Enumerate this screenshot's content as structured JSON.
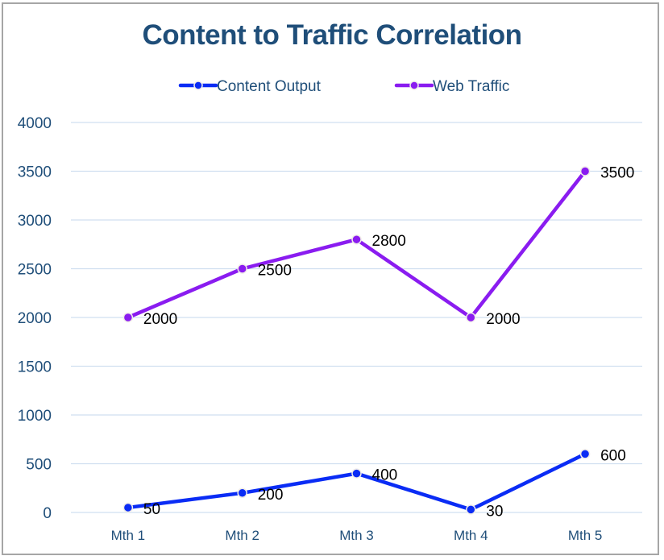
{
  "chart_data": {
    "type": "line",
    "title": "Content to Traffic Correlation",
    "xlabel": "",
    "ylabel": "",
    "categories": [
      "Mth 1",
      "Mth 2",
      "Mth 3",
      "Mth 4",
      "Mth 5"
    ],
    "ylim": [
      0,
      4000
    ],
    "yticks": [
      0,
      500,
      1000,
      1500,
      2000,
      2500,
      3000,
      3500,
      4000
    ],
    "grid": true,
    "legend_position": "top",
    "series": [
      {
        "name": "Content Output",
        "values": [
          50,
          200,
          400,
          30,
          600
        ],
        "color": "#0a2cf5",
        "data_labels": true
      },
      {
        "name": "Web Traffic",
        "values": [
          2000,
          2500,
          2800,
          2000,
          3500
        ],
        "color": "#8a1cf0",
        "data_labels": true
      }
    ],
    "colors": {
      "title": "#1f4e79",
      "axis_text": "#1f4e79",
      "gridline": "#d0dff0",
      "data_label": "#000000"
    }
  }
}
